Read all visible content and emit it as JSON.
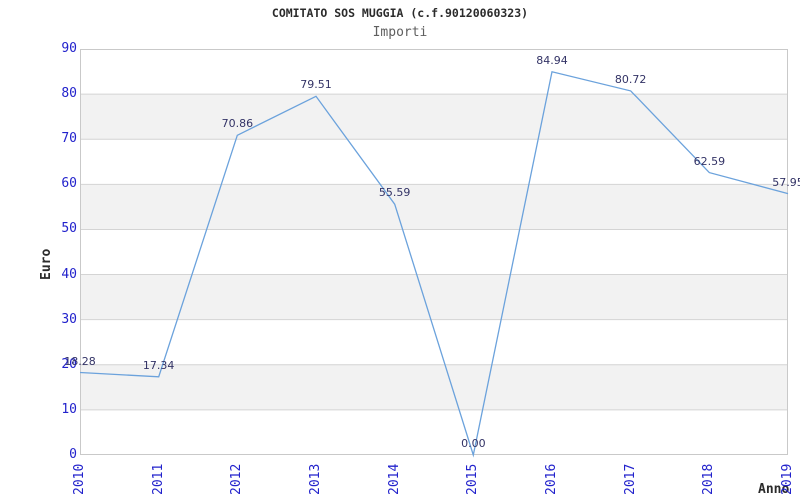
{
  "page": {
    "background": "#ffffff"
  },
  "chart_data": {
    "type": "line",
    "title": "COMITATO SOS MUGGIA (c.f.90120060323)",
    "subtitle": "Importi",
    "xlabel": "Anno",
    "ylabel": "Euro",
    "categories": [
      "2010",
      "2011",
      "2012",
      "2013",
      "2014",
      "2015",
      "2016",
      "2017",
      "2018",
      "2019"
    ],
    "series": [
      {
        "name": "Importi",
        "values": [
          18.28,
          17.34,
          70.86,
          79.51,
          55.59,
          0.0,
          84.94,
          80.72,
          62.59,
          57.95
        ]
      }
    ],
    "data_labels": [
      "18.28",
      "17.34",
      "70.86",
      "79.51",
      "55.59",
      "0.00",
      "84.94",
      "80.72",
      "62.59",
      "57.95"
    ],
    "ylim": [
      0,
      90
    ],
    "yticks": [
      0,
      10,
      20,
      30,
      40,
      50,
      60,
      70,
      80,
      90
    ],
    "grid": "horizontal gridlines every 10",
    "band_fill": "alternating gray bands 10-20, 30-40, 50-60, 70-80",
    "legend": "none",
    "colors": {
      "line": "#6ba2dc",
      "tick_label": "#2222cc",
      "data_label": "#333366",
      "title": "#2b2b2b",
      "subtitle": "#5f5f5f",
      "axis_title": "#2b2b2b",
      "band": "#f2f2f2",
      "gridline": "#d4d4d4",
      "plot_border": "#c9c9c9",
      "background": "#ffffff"
    }
  }
}
